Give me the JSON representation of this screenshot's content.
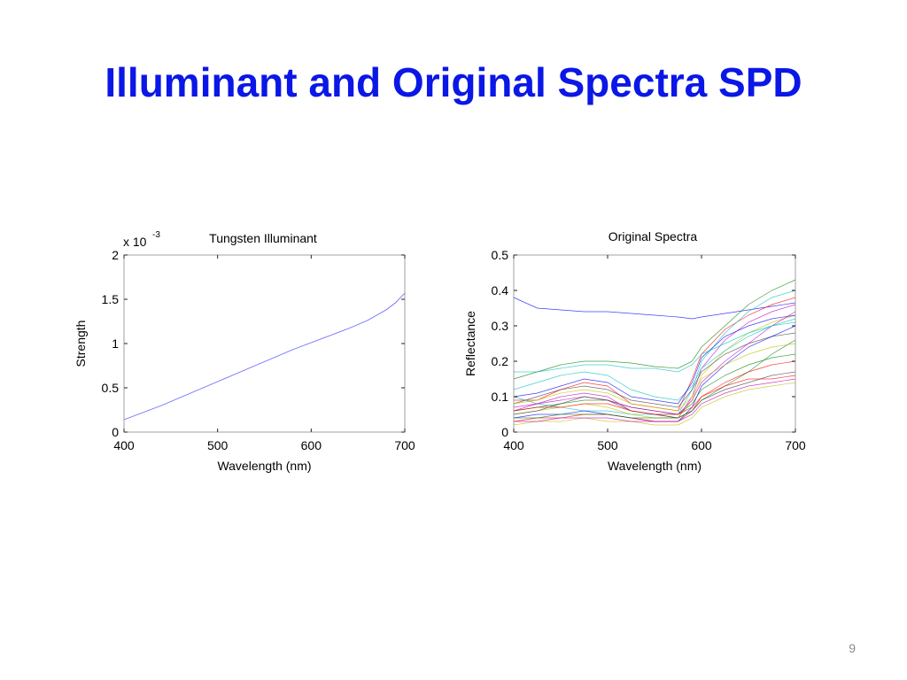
{
  "slide": {
    "title": "Illuminant and Original Spectra SPD",
    "page_number": "9"
  },
  "colors": {
    "title": "#0a17e6",
    "illuminant_line": "#6b6bff",
    "spectra_palette": [
      "#0000ff",
      "#008000",
      "#ff0000",
      "#00bfbf",
      "#bf00bf",
      "#bfbf00",
      "#404040"
    ]
  },
  "chart_data": [
    {
      "type": "line",
      "title": "Tungsten Illuminant",
      "xlabel": "Wavelength (nm)",
      "ylabel": "Strength",
      "y_multiplier_label": {
        "base": "x 10",
        "exponent": "-3"
      },
      "xlim": [
        400,
        700
      ],
      "ylim": [
        0,
        2
      ],
      "xticks": [
        "400",
        "500",
        "600",
        "700"
      ],
      "yticks": [
        "0",
        "0.5",
        "1",
        "1.5",
        "2"
      ],
      "grid": false,
      "series": [
        {
          "x": [
            400,
            420,
            440,
            460,
            480,
            500,
            520,
            540,
            560,
            580,
            600,
            620,
            640,
            660,
            680,
            690,
            700
          ],
          "y": [
            0.14,
            0.22,
            0.3,
            0.39,
            0.48,
            0.57,
            0.66,
            0.75,
            0.84,
            0.93,
            1.01,
            1.09,
            1.17,
            1.26,
            1.38,
            1.46,
            1.57
          ]
        }
      ]
    },
    {
      "type": "line",
      "title": "Original Spectra",
      "xlabel": "Wavelength (nm)",
      "ylabel": "Reflectance",
      "xlim": [
        400,
        700
      ],
      "ylim": [
        0,
        0.5
      ],
      "xticks": [
        "400",
        "500",
        "600",
        "700"
      ],
      "yticks": [
        "0",
        "0.1",
        "0.2",
        "0.3",
        "0.4",
        "0.5"
      ],
      "grid": false,
      "x": [
        400,
        425,
        450,
        475,
        500,
        525,
        550,
        575,
        590,
        600,
        625,
        650,
        675,
        700
      ],
      "series": [
        {
          "y": [
            0.38,
            0.35,
            0.345,
            0.34,
            0.34,
            0.335,
            0.33,
            0.325,
            0.32,
            0.325,
            0.335,
            0.345,
            0.355,
            0.365
          ]
        },
        {
          "y": [
            0.15,
            0.17,
            0.19,
            0.2,
            0.2,
            0.195,
            0.185,
            0.18,
            0.2,
            0.24,
            0.3,
            0.36,
            0.4,
            0.43
          ]
        },
        {
          "y": [
            0.09,
            0.09,
            0.12,
            0.14,
            0.13,
            0.08,
            0.07,
            0.06,
            0.15,
            0.22,
            0.29,
            0.33,
            0.36,
            0.38
          ]
        },
        {
          "y": [
            0.1,
            0.08,
            0.07,
            0.06,
            0.06,
            0.05,
            0.05,
            0.05,
            0.12,
            0.2,
            0.28,
            0.34,
            0.38,
            0.4
          ]
        },
        {
          "y": [
            0.06,
            0.08,
            0.1,
            0.11,
            0.1,
            0.06,
            0.05,
            0.04,
            0.1,
            0.18,
            0.26,
            0.31,
            0.34,
            0.36
          ]
        },
        {
          "y": [
            0.05,
            0.06,
            0.07,
            0.08,
            0.07,
            0.05,
            0.04,
            0.04,
            0.09,
            0.16,
            0.23,
            0.28,
            0.31,
            0.33
          ]
        },
        {
          "y": [
            0.08,
            0.1,
            0.12,
            0.13,
            0.12,
            0.09,
            0.08,
            0.07,
            0.12,
            0.17,
            0.22,
            0.25,
            0.27,
            0.28
          ]
        },
        {
          "y": [
            0.04,
            0.05,
            0.05,
            0.06,
            0.05,
            0.04,
            0.03,
            0.03,
            0.07,
            0.13,
            0.19,
            0.24,
            0.27,
            0.3
          ]
        },
        {
          "y": [
            0.06,
            0.07,
            0.08,
            0.09,
            0.09,
            0.07,
            0.06,
            0.05,
            0.08,
            0.12,
            0.16,
            0.19,
            0.21,
            0.22
          ]
        },
        {
          "y": [
            0.03,
            0.04,
            0.04,
            0.05,
            0.05,
            0.04,
            0.03,
            0.03,
            0.06,
            0.1,
            0.14,
            0.17,
            0.19,
            0.2
          ]
        },
        {
          "y": [
            0.12,
            0.14,
            0.16,
            0.17,
            0.16,
            0.12,
            0.1,
            0.09,
            0.13,
            0.18,
            0.23,
            0.27,
            0.3,
            0.32
          ]
        },
        {
          "y": [
            0.07,
            0.08,
            0.09,
            0.1,
            0.09,
            0.07,
            0.06,
            0.05,
            0.09,
            0.14,
            0.2,
            0.25,
            0.3,
            0.34
          ]
        },
        {
          "y": [
            0.02,
            0.03,
            0.03,
            0.04,
            0.03,
            0.03,
            0.02,
            0.02,
            0.04,
            0.07,
            0.1,
            0.12,
            0.13,
            0.14
          ]
        },
        {
          "y": [
            0.05,
            0.06,
            0.08,
            0.1,
            0.09,
            0.06,
            0.05,
            0.04,
            0.06,
            0.09,
            0.12,
            0.14,
            0.16,
            0.17
          ]
        },
        {
          "y": [
            0.1,
            0.11,
            0.13,
            0.15,
            0.14,
            0.1,
            0.09,
            0.08,
            0.14,
            0.21,
            0.27,
            0.3,
            0.32,
            0.33
          ]
        },
        {
          "y": [
            0.04,
            0.04,
            0.05,
            0.05,
            0.05,
            0.04,
            0.04,
            0.04,
            0.06,
            0.09,
            0.13,
            0.17,
            0.22,
            0.26
          ]
        },
        {
          "y": [
            0.06,
            0.07,
            0.07,
            0.08,
            0.08,
            0.06,
            0.05,
            0.05,
            0.07,
            0.1,
            0.13,
            0.15,
            0.15,
            0.16
          ]
        },
        {
          "y": [
            0.17,
            0.17,
            0.18,
            0.19,
            0.19,
            0.18,
            0.18,
            0.17,
            0.19,
            0.22,
            0.25,
            0.28,
            0.3,
            0.31
          ]
        },
        {
          "y": [
            0.03,
            0.03,
            0.04,
            0.04,
            0.04,
            0.03,
            0.03,
            0.03,
            0.05,
            0.08,
            0.11,
            0.13,
            0.14,
            0.15
          ]
        },
        {
          "y": [
            0.08,
            0.09,
            0.11,
            0.12,
            0.11,
            0.08,
            0.07,
            0.06,
            0.1,
            0.15,
            0.19,
            0.22,
            0.24,
            0.25
          ]
        }
      ]
    }
  ]
}
